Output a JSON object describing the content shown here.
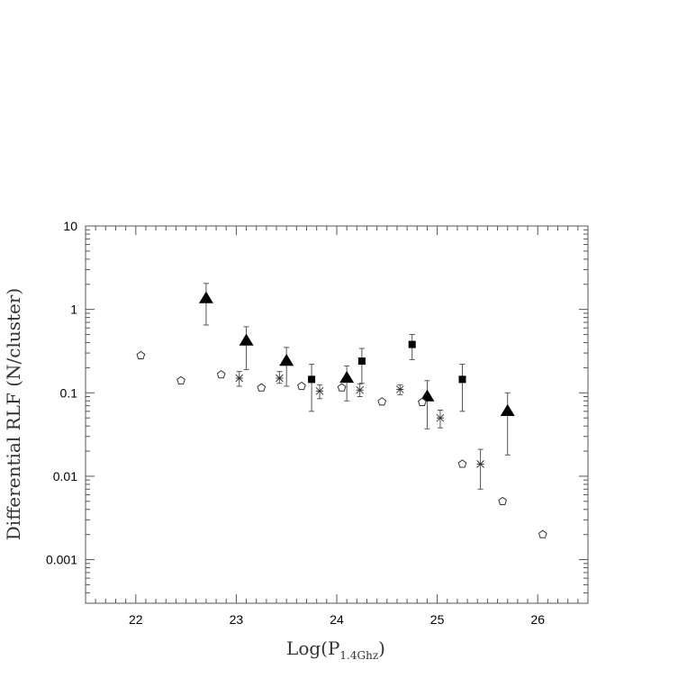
{
  "chart_data": {
    "type": "scatter",
    "title": "",
    "xlabel_main": "Log(P",
    "xlabel_sub": "1.4Ghz",
    "xlabel_close": ")",
    "ylabel": "Differential RLF (N/cluster)",
    "xlim": [
      21.5,
      26.5
    ],
    "ylim": [
      0.0003,
      10
    ],
    "y_scale": "log",
    "x_ticks": [
      22,
      23,
      24,
      25,
      26
    ],
    "x_tick_labels": [
      "22",
      "23",
      "24",
      "25",
      "26"
    ],
    "y_ticks": [
      10,
      1,
      0.1,
      0.01,
      0.001
    ],
    "y_tick_labels": [
      "10",
      "1",
      "0.1",
      "0.01",
      "0.001"
    ],
    "grid": false,
    "series": [
      {
        "marker": "triangle",
        "color": "#000000",
        "points": [
          {
            "x": 22.7,
            "y": 1.35,
            "lo": 0.65,
            "hi": 2.05
          },
          {
            "x": 23.1,
            "y": 0.42,
            "lo": 0.19,
            "hi": 0.62
          },
          {
            "x": 23.5,
            "y": 0.24,
            "lo": 0.12,
            "hi": 0.35
          },
          {
            "x": 24.1,
            "y": 0.15,
            "lo": 0.08,
            "hi": 0.21
          },
          {
            "x": 24.9,
            "y": 0.09,
            "lo": 0.037,
            "hi": 0.14
          },
          {
            "x": 25.7,
            "y": 0.06,
            "lo": 0.018,
            "hi": 0.1
          }
        ]
      },
      {
        "marker": "square",
        "color": "#000000",
        "points": [
          {
            "x": 23.75,
            "y": 0.145,
            "lo": 0.06,
            "hi": 0.22
          },
          {
            "x": 24.25,
            "y": 0.24,
            "lo": 0.13,
            "hi": 0.34
          },
          {
            "x": 24.75,
            "y": 0.38,
            "lo": 0.25,
            "hi": 0.5
          },
          {
            "x": 25.25,
            "y": 0.145,
            "lo": 0.06,
            "hi": 0.22
          }
        ]
      },
      {
        "marker": "asterisk",
        "color": "#000000",
        "points": [
          {
            "x": 23.03,
            "y": 0.15,
            "lo": 0.12,
            "hi": 0.18
          },
          {
            "x": 23.43,
            "y": 0.15,
            "lo": 0.13,
            "hi": 0.18
          },
          {
            "x": 23.83,
            "y": 0.105,
            "lo": 0.085,
            "hi": 0.125
          },
          {
            "x": 24.23,
            "y": 0.108,
            "lo": 0.09,
            "hi": 0.128
          },
          {
            "x": 24.63,
            "y": 0.11,
            "lo": 0.095,
            "hi": 0.125
          },
          {
            "x": 25.03,
            "y": 0.05,
            "lo": 0.038,
            "hi": 0.062
          },
          {
            "x": 25.43,
            "y": 0.014,
            "lo": 0.007,
            "hi": 0.021
          }
        ]
      },
      {
        "marker": "pentagon",
        "color": "#000000",
        "points": [
          {
            "x": 22.05,
            "y": 0.28
          },
          {
            "x": 22.45,
            "y": 0.14
          },
          {
            "x": 22.85,
            "y": 0.165
          },
          {
            "x": 23.25,
            "y": 0.115
          },
          {
            "x": 23.65,
            "y": 0.12
          },
          {
            "x": 24.05,
            "y": 0.115
          },
          {
            "x": 24.45,
            "y": 0.078
          },
          {
            "x": 24.85,
            "y": 0.077
          },
          {
            "x": 25.25,
            "y": 0.014
          },
          {
            "x": 25.65,
            "y": 0.005
          },
          {
            "x": 26.05,
            "y": 0.002
          }
        ]
      }
    ]
  }
}
